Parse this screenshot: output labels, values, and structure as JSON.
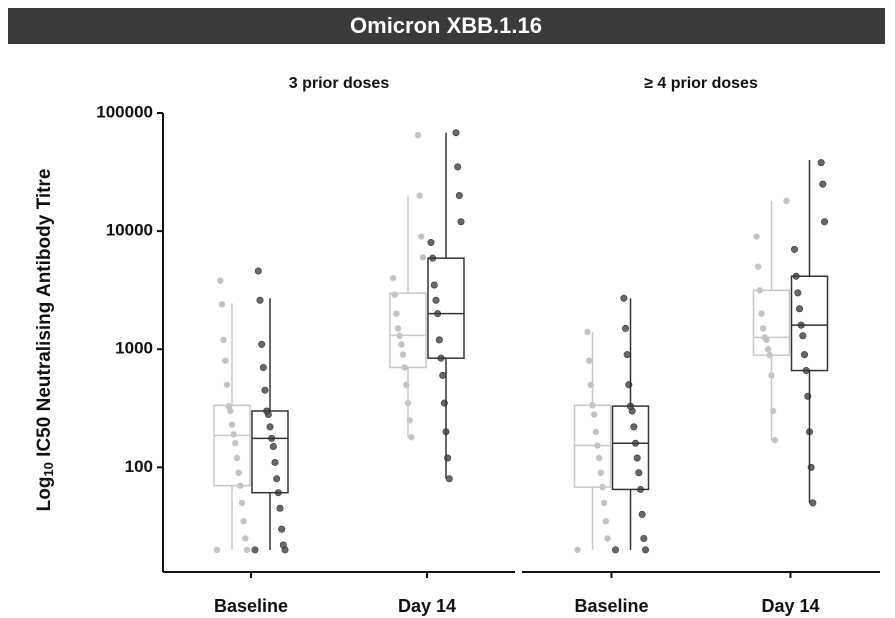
{
  "title": "Omicron XBB.1.16",
  "ylabel": {
    "base": "Log",
    "subscript": "10",
    "rest": " IC50 Neutralising Antibody Titre"
  },
  "chart_data": [
    {
      "type": "box",
      "title": "3 prior doses",
      "categories": [
        "Baseline",
        "Day 14"
      ],
      "log_scale": true,
      "ylim": [
        13,
        100000
      ],
      "yticks": [
        100,
        1000,
        10000,
        100000
      ],
      "series": [
        {
          "color": "#bdbdbd",
          "box_color": "#c8c8c8",
          "boxes": [
            {
              "min": 20,
              "q1": 70,
              "median": 186,
              "q3": 335,
              "max": 2450
            },
            {
              "min": 180,
              "q1": 700,
              "median": 1310,
              "q3": 2980,
              "max": 20000
            }
          ],
          "points": [
            [
              20,
              20,
              25,
              35,
              50,
              70,
              90,
              120,
              160,
              190,
              230,
              300,
              330,
              500,
              800,
              1200,
              2400,
              3800
            ],
            [
              180,
              250,
              350,
              500,
              700,
              900,
              1100,
              1300,
              1500,
              2000,
              2900,
              4000,
              6000,
              9000,
              20000,
              65000
            ]
          ]
        },
        {
          "color": "#585858",
          "box_color": "#333333",
          "boxes": [
            {
              "min": 20,
              "q1": 61,
              "median": 176,
              "q3": 300,
              "max": 2700
            },
            {
              "min": 80,
              "q1": 840,
              "median": 2000,
              "q3": 5900,
              "max": 68000
            }
          ],
          "points": [
            [
              20,
              20,
              22,
              30,
              45,
              61,
              80,
              110,
              150,
              176,
              220,
              280,
              300,
              450,
              700,
              1100,
              2600,
              4600
            ],
            [
              80,
              120,
              200,
              350,
              600,
              840,
              1200,
              2000,
              2600,
              3500,
              5900,
              8000,
              12000,
              20000,
              35000,
              68000
            ]
          ]
        }
      ]
    },
    {
      "type": "box",
      "title": "≥ 4 prior doses",
      "categories": [
        "Baseline",
        "Day 14"
      ],
      "log_scale": true,
      "ylim": [
        13,
        100000
      ],
      "series": [
        {
          "color": "#bdbdbd",
          "box_color": "#c8c8c8",
          "boxes": [
            {
              "min": 20,
              "q1": 68,
              "median": 153,
              "q3": 335,
              "max": 1400
            },
            {
              "min": 170,
              "q1": 890,
              "median": 1260,
              "q3": 3150,
              "max": 18000
            }
          ],
          "points": [
            [
              20,
              25,
              35,
              50,
              68,
              90,
              120,
              153,
              200,
              280,
              335,
              500,
              800,
              1400
            ],
            [
              170,
              300,
              600,
              890,
              1000,
              1200,
              1260,
              1500,
              2000,
              3150,
              5000,
              9000,
              18000
            ]
          ]
        },
        {
          "color": "#585858",
          "box_color": "#333333",
          "boxes": [
            {
              "min": 20,
              "q1": 65,
              "median": 160,
              "q3": 330,
              "max": 2700
            },
            {
              "min": 50,
              "q1": 660,
              "median": 1600,
              "q3": 4150,
              "max": 40000
            }
          ],
          "points": [
            [
              20,
              20,
              25,
              40,
              65,
              90,
              120,
              160,
              220,
              300,
              330,
              500,
              900,
              1500,
              2700
            ],
            [
              50,
              100,
              200,
              400,
              660,
              900,
              1300,
              1600,
              2200,
              3000,
              4150,
              7000,
              12000,
              25000,
              38000
            ]
          ]
        }
      ]
    }
  ]
}
